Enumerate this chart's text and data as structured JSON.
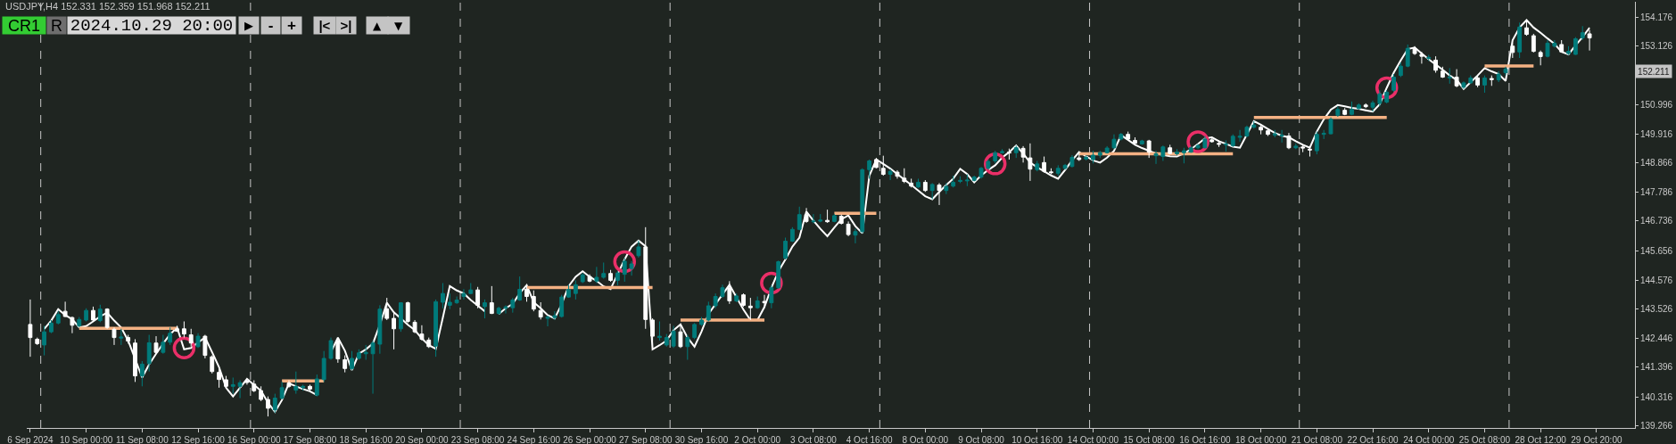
{
  "chart_data": {
    "type": "candlestick",
    "title": "USDJPY,H4 152.331 152.359 151.968 152.211",
    "annotations": [
      "CR1",
      "R",
      "2024.10.29 20:00",
      "▶",
      "-",
      "+",
      "|<",
      ">|",
      "▲",
      "▼",
      "152.211"
    ],
    "categories": [
      "6 Sep 2024",
      null,
      null,
      null,
      null,
      null,
      null,
      null,
      "10 Sep 00:00",
      null,
      null,
      null,
      null,
      null,
      null,
      null,
      "11 Sep 08:00",
      null,
      null,
      null,
      null,
      null,
      null,
      null,
      "12 Sep 16:00",
      null,
      null,
      null,
      null,
      null,
      null,
      null,
      "16 Sep 00:00",
      null,
      null,
      null,
      null,
      null,
      null,
      null,
      "17 Sep 08:00",
      null,
      null,
      null,
      null,
      null,
      null,
      null,
      "18 Sep 16:00",
      null,
      null,
      null,
      null,
      null,
      null,
      null,
      "20 Sep 00:00",
      null,
      null,
      null,
      null,
      null,
      null,
      null,
      "23 Sep 08:00",
      null,
      null,
      null,
      null,
      null,
      null,
      null,
      "24 Sep 16:00",
      null,
      null,
      null,
      null,
      null,
      null,
      null,
      "26 Sep 00:00",
      null,
      null,
      null,
      null,
      null,
      null,
      null,
      "27 Sep 08:00",
      null,
      null,
      null,
      null,
      null,
      null,
      null,
      "30 Sep 16:00",
      null,
      null,
      null,
      null,
      null,
      null,
      null,
      "2 Oct 00:00",
      null,
      null,
      null,
      null,
      null,
      null,
      null,
      "3 Oct 08:00",
      null,
      null,
      null,
      null,
      null,
      null,
      null,
      "4 Oct 16:00",
      null,
      null,
      null,
      null,
      null,
      null,
      null,
      "8 Oct 00:00",
      null,
      null,
      null,
      null,
      null,
      null,
      null,
      "9 Oct 08:00",
      null,
      null,
      null,
      null,
      null,
      null,
      null,
      "10 Oct 16:00",
      null,
      null,
      null,
      null,
      null,
      null,
      null,
      "14 Oct 00:00",
      null,
      null,
      null,
      null,
      null,
      null,
      null,
      "15 Oct 08:00",
      null,
      null,
      null,
      null,
      null,
      null,
      null,
      "16 Oct 16:00",
      null,
      null,
      null,
      null,
      null,
      null,
      null,
      "18 Oct 00:00",
      null,
      null,
      null,
      null,
      null,
      null,
      null,
      "21 Oct 08:00",
      null,
      null,
      null,
      null,
      null,
      null,
      null,
      "22 Oct 16:00",
      null,
      null,
      null,
      null,
      null,
      null,
      null,
      "24 Oct 00:00",
      null,
      null,
      null,
      null,
      null,
      null,
      null,
      "25 Oct 08:00",
      null,
      null,
      null,
      null,
      null,
      null,
      null,
      "28 Oct 12:00",
      null,
      null,
      null,
      null,
      null,
      null,
      null,
      "29 Oct 20:00"
    ],
    "ohlc": [
      [
        142.96,
        143.87,
        141.78,
        142.48
      ],
      [
        142.42,
        142.48,
        142.21,
        142.26
      ],
      [
        142.21,
        142.91,
        141.83,
        142.69
      ],
      [
        142.69,
        143.12,
        142.64,
        143.01
      ],
      [
        143.01,
        143.44,
        142.96,
        143.32
      ],
      [
        143.44,
        143.79,
        143.23,
        143.25
      ],
      [
        143.21,
        143.25,
        142.64,
        142.93
      ],
      [
        142.91,
        143.23,
        142.85,
        143.14
      ],
      [
        143.12,
        143.55,
        143.07,
        143.47
      ],
      [
        143.47,
        143.61,
        143.07,
        143.12
      ],
      [
        143.1,
        143.68,
        143.04,
        143.52
      ],
      [
        143.52,
        143.55,
        142.8,
        142.85
      ],
      [
        142.78,
        142.85,
        142.21,
        142.48
      ],
      [
        142.46,
        142.8,
        142.21,
        142.5
      ],
      [
        142.48,
        142.58,
        142.26,
        142.35
      ],
      [
        142.28,
        142.42,
        140.86,
        141.08
      ],
      [
        141.08,
        141.62,
        140.7,
        141.51
      ],
      [
        141.53,
        142.58,
        141.24,
        142.29
      ],
      [
        142.28,
        142.53,
        141.89,
        141.94
      ],
      [
        141.94,
        142.58,
        141.89,
        142.31
      ],
      [
        142.31,
        142.85,
        142.21,
        142.64
      ],
      [
        142.8,
        142.91,
        142.69,
        142.71
      ],
      [
        142.8,
        143.07,
        142.48,
        142.61
      ],
      [
        142.58,
        142.8,
        142.15,
        142.28
      ],
      [
        142.15,
        142.64,
        142.1,
        142.53
      ],
      [
        142.53,
        142.58,
        141.72,
        141.83
      ],
      [
        141.78,
        141.83,
        141.17,
        141.24
      ],
      [
        141.21,
        141.4,
        140.65,
        140.95
      ],
      [
        140.94,
        141.08,
        140.65,
        140.7
      ],
      [
        140.7,
        141.02,
        140.43,
        140.76
      ],
      [
        140.7,
        140.92,
        140.27,
        140.83
      ],
      [
        140.89,
        140.97,
        140.76,
        140.84
      ],
      [
        140.78,
        140.92,
        140.49,
        140.54
      ],
      [
        140.54,
        140.7,
        140.16,
        140.22
      ],
      [
        140.22,
        140.33,
        139.6,
        139.9
      ],
      [
        139.84,
        140.43,
        139.73,
        140.27
      ],
      [
        140.27,
        140.86,
        140.22,
        140.65
      ],
      [
        140.82,
        140.92,
        140.65,
        140.7
      ],
      [
        140.56,
        141.24,
        140.43,
        140.7
      ],
      [
        140.65,
        140.76,
        140.54,
        140.7
      ],
      [
        140.7,
        140.76,
        140.54,
        140.6
      ],
      [
        140.38,
        141.13,
        140.33,
        140.97
      ],
      [
        140.95,
        141.99,
        140.86,
        141.72
      ],
      [
        141.72,
        142.48,
        141.67,
        142.37
      ],
      [
        142.37,
        142.48,
        141.56,
        141.7
      ],
      [
        141.67,
        141.83,
        141.21,
        141.35
      ],
      [
        141.35,
        141.99,
        141.29,
        141.72
      ],
      [
        141.72,
        142.05,
        141.67,
        141.92
      ],
      [
        141.89,
        142.21,
        141.67,
        141.94
      ],
      [
        141.89,
        142.37,
        140.43,
        142.28
      ],
      [
        142.24,
        143.66,
        141.89,
        143.52
      ],
      [
        143.53,
        143.93,
        143.12,
        143.18
      ],
      [
        143.18,
        143.39,
        142.05,
        142.8
      ],
      [
        142.8,
        143.77,
        142.69,
        143.75
      ],
      [
        143.75,
        143.79,
        143.01,
        143.07
      ],
      [
        143.04,
        143.12,
        142.64,
        142.69
      ],
      [
        142.61,
        142.93,
        142.37,
        142.42
      ],
      [
        142.39,
        142.48,
        142.1,
        142.15
      ],
      [
        142.17,
        143.87,
        141.78,
        143.79
      ],
      [
        143.77,
        144.47,
        143.55,
        144.09
      ],
      [
        143.66,
        144.09,
        143.52,
        143.77
      ],
      [
        143.75,
        143.98,
        143.71,
        143.85
      ],
      [
        143.98,
        144.25,
        143.87,
        144.09
      ],
      [
        144.09,
        144.47,
        144.07,
        144.22
      ],
      [
        144.22,
        144.33,
        143.55,
        143.66
      ],
      [
        143.61,
        143.87,
        143.18,
        143.75
      ],
      [
        143.75,
        144.36,
        143.34,
        143.36
      ],
      [
        143.36,
        143.61,
        143.32,
        143.55
      ],
      [
        143.55,
        143.66,
        143.36,
        143.6
      ],
      [
        143.57,
        143.93,
        143.39,
        143.85
      ],
      [
        143.85,
        144.71,
        143.82,
        144.24
      ],
      [
        144.25,
        144.36,
        143.79,
        143.98
      ],
      [
        143.98,
        144.2,
        143.44,
        143.52
      ],
      [
        143.47,
        143.77,
        143.14,
        143.23
      ],
      [
        143.18,
        143.28,
        142.89,
        143.23
      ],
      [
        143.21,
        143.44,
        143.12,
        143.28
      ],
      [
        143.25,
        144.04,
        143.21,
        143.96
      ],
      [
        143.96,
        144.41,
        143.93,
        144.24
      ],
      [
        144.09,
        144.57,
        143.87,
        144.41
      ],
      [
        144.52,
        144.84,
        144.47,
        144.77
      ],
      [
        144.71,
        144.79,
        144.5,
        144.54
      ],
      [
        144.54,
        145.06,
        144.47,
        144.68
      ],
      [
        144.68,
        145.22,
        144.63,
        144.82
      ],
      [
        144.82,
        144.95,
        144.52,
        144.57
      ],
      [
        144.57,
        144.9,
        144.39,
        144.84
      ],
      [
        144.79,
        145.38,
        144.52,
        145.27
      ],
      [
        145.0,
        145.27,
        144.74,
        145.17
      ],
      [
        145.47,
        146.02,
        145.4,
        145.79
      ],
      [
        145.79,
        146.51,
        142.8,
        143.14
      ],
      [
        143.12,
        143.18,
        142.1,
        142.53
      ],
      [
        142.48,
        143.07,
        142.37,
        142.53
      ],
      [
        142.21,
        142.61,
        142.15,
        142.48
      ],
      [
        142.17,
        142.91,
        142.1,
        142.71
      ],
      [
        142.69,
        142.91,
        142.1,
        142.15
      ],
      [
        142.15,
        142.58,
        141.67,
        142.48
      ],
      [
        142.48,
        143.01,
        142.42,
        142.96
      ],
      [
        142.96,
        143.23,
        142.91,
        143.12
      ],
      [
        143.12,
        143.79,
        143.07,
        143.64
      ],
      [
        143.64,
        144.09,
        143.55,
        143.98
      ],
      [
        143.98,
        144.41,
        143.93,
        144.3
      ],
      [
        144.3,
        144.54,
        143.71,
        143.82
      ],
      [
        143.82,
        144.09,
        143.77,
        144.0
      ],
      [
        144.04,
        144.09,
        143.61,
        143.66
      ],
      [
        143.63,
        143.93,
        143.12,
        143.57
      ],
      [
        143.57,
        143.98,
        143.53,
        143.82
      ],
      [
        143.8,
        144.04,
        143.55,
        143.75
      ],
      [
        143.75,
        144.39,
        143.55,
        144.3
      ],
      [
        144.3,
        145.29,
        144.25,
        145.25
      ],
      [
        145.38,
        146.13,
        145.33,
        146.0
      ],
      [
        146.0,
        146.51,
        145.97,
        146.43
      ],
      [
        146.43,
        147.26,
        146.4,
        146.97
      ],
      [
        146.97,
        147.21,
        146.67,
        146.72
      ],
      [
        146.71,
        146.99,
        146.65,
        146.73
      ],
      [
        146.73,
        146.99,
        146.69,
        146.77
      ],
      [
        146.76,
        147.15,
        146.67,
        146.71
      ],
      [
        146.72,
        146.99,
        146.69,
        146.93
      ],
      [
        146.91,
        146.97,
        146.61,
        146.65
      ],
      [
        146.62,
        146.72,
        146.18,
        146.24
      ],
      [
        146.22,
        146.46,
        145.92,
        146.35
      ],
      [
        146.35,
        148.66,
        146.29,
        148.61
      ],
      [
        148.61,
        148.98,
        148.28,
        148.93
      ],
      [
        148.98,
        149.04,
        148.66,
        148.69
      ],
      [
        148.66,
        149.12,
        148.39,
        148.44
      ],
      [
        148.44,
        148.63,
        148.23,
        148.55
      ],
      [
        148.52,
        148.59,
        148.28,
        148.37
      ],
      [
        148.3,
        148.66,
        148.12,
        148.18
      ],
      [
        148.12,
        148.28,
        147.96,
        148.01
      ],
      [
        147.98,
        148.28,
        147.94,
        148.15
      ],
      [
        148.15,
        148.23,
        147.8,
        147.85
      ],
      [
        147.85,
        148.12,
        147.53,
        148.07
      ],
      [
        148.05,
        148.12,
        147.32,
        147.85
      ],
      [
        147.85,
        148.12,
        147.72,
        148.0
      ],
      [
        148.01,
        148.39,
        147.96,
        148.15
      ],
      [
        148.18,
        148.37,
        148.12,
        148.22
      ],
      [
        148.2,
        148.44,
        148.01,
        148.23
      ],
      [
        148.22,
        148.39,
        148.18,
        148.34
      ],
      [
        148.34,
        148.71,
        148.28,
        148.66
      ],
      [
        148.66,
        148.98,
        148.61,
        148.91
      ],
      [
        148.93,
        149.3,
        148.84,
        149.23
      ],
      [
        149.23,
        149.36,
        149.2,
        149.27
      ],
      [
        149.25,
        149.38,
        148.98,
        149.22
      ],
      [
        149.23,
        149.49,
        149.04,
        149.41
      ],
      [
        149.39,
        149.47,
        148.87,
        149.07
      ],
      [
        149.04,
        149.57,
        148.2,
        148.63
      ],
      [
        148.61,
        148.93,
        148.55,
        148.82
      ],
      [
        148.87,
        149.09,
        148.5,
        148.55
      ],
      [
        148.53,
        148.66,
        148.44,
        148.5
      ],
      [
        148.48,
        148.77,
        148.39,
        148.66
      ],
      [
        148.66,
        148.82,
        148.61,
        148.77
      ],
      [
        148.73,
        149.14,
        148.69,
        149.06
      ],
      [
        149.04,
        149.25,
        148.93,
        148.98
      ],
      [
        149.0,
        149.14,
        148.95,
        149.06
      ],
      [
        148.98,
        149.3,
        148.84,
        149.14
      ],
      [
        149.14,
        149.3,
        149.04,
        149.23
      ],
      [
        149.23,
        149.47,
        149.2,
        149.4
      ],
      [
        149.41,
        149.9,
        149.36,
        149.72
      ],
      [
        149.73,
        149.95,
        149.68,
        149.9
      ],
      [
        149.9,
        150.0,
        149.68,
        149.73
      ],
      [
        149.68,
        149.79,
        149.52,
        149.57
      ],
      [
        149.55,
        149.7,
        149.52,
        149.66
      ],
      [
        149.66,
        149.7,
        149.04,
        149.25
      ],
      [
        149.12,
        149.3,
        148.82,
        149.19
      ],
      [
        149.09,
        149.49,
        148.93,
        149.44
      ],
      [
        149.41,
        149.52,
        149.17,
        149.2
      ],
      [
        149.19,
        149.36,
        149.14,
        149.25
      ],
      [
        149.23,
        149.41,
        148.84,
        149.3
      ],
      [
        149.25,
        149.47,
        149.23,
        149.41
      ],
      [
        149.41,
        149.55,
        149.36,
        149.49
      ],
      [
        149.41,
        149.84,
        149.38,
        149.73
      ],
      [
        149.7,
        149.77,
        149.6,
        149.63
      ],
      [
        149.57,
        149.68,
        149.44,
        149.54
      ],
      [
        149.52,
        149.68,
        149.27,
        149.55
      ],
      [
        149.49,
        149.9,
        149.44,
        149.83
      ],
      [
        149.79,
        150.06,
        149.63,
        149.83
      ],
      [
        149.84,
        150.22,
        149.79,
        150.16
      ],
      [
        150.16,
        150.38,
        150.11,
        150.24
      ],
      [
        150.16,
        150.24,
        149.9,
        150.06
      ],
      [
        150.03,
        150.11,
        149.84,
        149.9
      ],
      [
        149.87,
        150.06,
        149.79,
        149.92
      ],
      [
        149.84,
        150.06,
        149.6,
        149.87
      ],
      [
        149.84,
        149.95,
        149.36,
        149.41
      ],
      [
        149.41,
        149.57,
        149.36,
        149.47
      ],
      [
        149.44,
        149.52,
        149.25,
        149.4
      ],
      [
        149.36,
        149.47,
        149.09,
        149.33
      ],
      [
        149.3,
        150.0,
        149.17,
        149.9
      ],
      [
        149.9,
        150.06,
        149.73,
        149.94
      ],
      [
        149.92,
        150.52,
        149.9,
        150.45
      ],
      [
        150.6,
        150.92,
        150.54,
        150.81
      ],
      [
        150.78,
        150.86,
        150.6,
        150.63
      ],
      [
        150.63,
        151.1,
        150.6,
        150.81
      ],
      [
        150.84,
        151.03,
        150.81,
        150.97
      ],
      [
        150.97,
        151.03,
        150.86,
        150.91
      ],
      [
        150.89,
        151.13,
        150.73,
        151.05
      ],
      [
        151.03,
        151.51,
        150.92,
        151.38
      ],
      [
        151.08,
        151.51,
        151.03,
        151.44
      ],
      [
        151.51,
        152.1,
        151.45,
        151.99
      ],
      [
        152.05,
        152.53,
        151.99,
        152.39
      ],
      [
        152.39,
        153.18,
        152.35,
        153.04
      ],
      [
        153.04,
        153.12,
        152.8,
        152.85
      ],
      [
        152.82,
        152.91,
        152.48,
        152.75
      ],
      [
        152.67,
        152.8,
        152.58,
        152.71
      ],
      [
        152.61,
        152.75,
        152.15,
        152.24
      ],
      [
        152.21,
        152.37,
        151.96,
        151.99
      ],
      [
        151.96,
        152.32,
        151.75,
        151.99
      ],
      [
        151.99,
        152.28,
        151.62,
        151.67
      ],
      [
        151.62,
        151.83,
        151.56,
        151.78
      ],
      [
        151.78,
        152.05,
        151.75,
        151.96
      ],
      [
        151.96,
        152.05,
        151.62,
        151.7
      ],
      [
        151.7,
        152.05,
        151.42,
        151.96
      ],
      [
        151.94,
        152.05,
        151.67,
        151.9
      ],
      [
        151.89,
        152.21,
        151.81,
        152.1
      ],
      [
        152.15,
        152.37,
        152.05,
        152.28
      ],
      [
        153.12,
        153.23,
        152.69,
        152.89
      ],
      [
        152.91,
        153.98,
        152.69,
        153.82
      ],
      [
        153.79,
        154.09,
        153.5,
        153.55
      ],
      [
        153.5,
        153.57,
        152.89,
        152.93
      ],
      [
        152.89,
        152.96,
        152.42,
        152.74
      ],
      [
        152.75,
        153.34,
        152.71,
        153.23
      ],
      [
        153.12,
        153.34,
        153.07,
        153.23
      ],
      [
        153.18,
        153.34,
        152.89,
        152.91
      ],
      [
        152.85,
        153.12,
        152.8,
        152.93
      ],
      [
        152.82,
        153.45,
        152.8,
        153.39
      ],
      [
        153.42,
        153.85,
        153.34,
        153.61
      ],
      [
        153.57,
        153.71,
        152.96,
        153.42
      ],
      null
    ],
    "colors": [
      "#ffffff",
      "#ffffff",
      "#007b7b",
      "#007b7b",
      "#007b7b",
      "#ffffff",
      "#ffffff",
      "#007b7b",
      "#007b7b",
      "#ffffff",
      "#007b7b",
      "#ffffff",
      "#ffffff",
      "#007b7b",
      "#ffffff",
      "#ffffff",
      "#007b7b",
      "#007b7b",
      "#ffffff",
      "#007b7b",
      "#007b7b",
      "#ffffff",
      "#ffffff",
      "#ffffff",
      "#007b7b",
      "#ffffff",
      "#ffffff",
      "#ffffff",
      "#ffffff",
      "#007b7b",
      "#007b7b",
      "#ffffff",
      "#ffffff",
      "#ffffff",
      "#ffffff",
      "#007b7b",
      "#007b7b",
      "#ffffff",
      "#007b7b",
      "#007b7b",
      "#ffffff",
      "#007b7b",
      "#007b7b",
      "#007b7b",
      "#ffffff",
      "#ffffff",
      "#007b7b",
      "#007b7b",
      "#007b7b",
      "#007b7b",
      "#007b7b",
      "#ffffff",
      "#ffffff",
      "#007b7b",
      "#ffffff",
      "#ffffff",
      "#ffffff",
      "#ffffff",
      "#007b7b",
      "#007b7b",
      "#007b7b",
      "#007b7b",
      "#007b7b",
      "#007b7b",
      "#ffffff",
      "#007b7b",
      "#ffffff",
      "#007b7b",
      "#007b7b",
      "#007b7b",
      "#007b7b",
      "#ffffff",
      "#ffffff",
      "#ffffff",
      "#007b7b",
      "#007b7b",
      "#007b7b",
      "#007b7b",
      "#007b7b",
      "#007b7b",
      "#ffffff",
      "#007b7b",
      "#007b7b",
      "#ffffff",
      "#007b7b",
      "#007b7b",
      "#007b7b",
      "#007b7b",
      "#ffffff",
      "#ffffff",
      "#007b7b",
      "#007b7b",
      "#007b7b",
      "#ffffff",
      "#007b7b",
      "#007b7b",
      "#007b7b",
      "#007b7b",
      "#007b7b",
      "#007b7b",
      "#ffffff",
      "#007b7b",
      "#ffffff",
      "#ffffff",
      "#007b7b",
      "#ffffff",
      "#007b7b",
      "#007b7b",
      "#007b7b",
      "#007b7b",
      "#007b7b",
      "#ffffff",
      "#007b7b",
      "#007b7b",
      "#ffffff",
      "#007b7b",
      "#ffffff",
      "#ffffff",
      "#007b7b",
      "#007b7b",
      "#007b7b",
      "#ffffff",
      "#ffffff",
      "#007b7b",
      "#ffffff",
      "#ffffff",
      "#ffffff",
      "#007b7b",
      "#ffffff",
      "#007b7b",
      "#ffffff",
      "#007b7b",
      "#007b7b",
      "#007b7b",
      "#007b7b",
      "#007b7b",
      "#007b7b",
      "#007b7b",
      "#007b7b",
      "#007b7b",
      "#ffffff",
      "#007b7b",
      "#ffffff",
      "#ffffff",
      "#007b7b",
      "#ffffff",
      "#ffffff",
      "#007b7b",
      "#007b7b",
      "#007b7b",
      "#ffffff",
      "#007b7b",
      "#007b7b",
      "#007b7b",
      "#007b7b",
      "#007b7b",
      "#007b7b",
      "#ffffff",
      "#ffffff",
      "#007b7b",
      "#ffffff",
      "#007b7b",
      "#007b7b",
      "#ffffff",
      "#007b7b",
      "#007b7b",
      "#007b7b",
      "#007b7b",
      "#007b7b",
      "#ffffff",
      "#ffffff",
      "#007b7b",
      "#007b7b",
      "#007b7b",
      "#007b7b",
      "#007b7b",
      "#ffffff",
      "#ffffff",
      "#007b7b",
      "#007b7b",
      "#ffffff",
      "#007b7b",
      "#ffffff",
      "#ffffff",
      "#007b7b",
      "#007b7b",
      "#007b7b",
      "#007b7b",
      "#ffffff",
      "#007b7b",
      "#007b7b",
      "#ffffff",
      "#007b7b",
      "#007b7b",
      "#007b7b",
      "#007b7b",
      "#007b7b",
      "#007b7b",
      "#ffffff",
      "#ffffff",
      "#007b7b",
      "#ffffff",
      "#ffffff",
      "#007b7b",
      "#ffffff",
      "#007b7b",
      "#007b7b",
      "#ffffff",
      "#007b7b",
      "#ffffff",
      "#007b7b",
      "#007b7b",
      "#ffffff",
      "#007b7b",
      "#ffffff",
      "#ffffff",
      "#ffffff",
      "#007b7b",
      "#007b7b",
      "#ffffff",
      "#007b7b",
      "#007b7b",
      "#007b7b",
      "#ffffff",
      null
    ],
    "series": [
      {
        "type": "line",
        "color": "#ffffff",
        "values": [
          null,
          null,
          142.8,
          143.1,
          143.52,
          143.3,
          143.15,
          142.85,
          142.9,
          143.07,
          143.25,
          143.39,
          143.1,
          142.85,
          142.37,
          141.7,
          141.02,
          141.5,
          141.89,
          142.26,
          142.6,
          142.85,
          142.05,
          142.1,
          142.3,
          142.48,
          141.95,
          141.4,
          140.65,
          140.33,
          140.65,
          140.97,
          140.75,
          140.54,
          140.1,
          139.77,
          140.2,
          140.81,
          140.7,
          140.6,
          140.52,
          140.38,
          null,
          141.95,
          142.48,
          142.0,
          141.29,
          141.89,
          142.05,
          142.26,
          142.95,
          143.75,
          143.4,
          143.18,
          142.95,
          142.75,
          142.45,
          142.2,
          142.07,
          143.2,
          144.36,
          144.2,
          144.09,
          143.85,
          143.65,
          143.44,
          null,
          143.34,
          143.55,
          143.71,
          144.1,
          144.39,
          143.77,
          143.55,
          143.3,
          143.18,
          143.7,
          144.36,
          144.7,
          144.9,
          144.7,
          144.55,
          144.35,
          144.25,
          144.8,
          145.33,
          145.8,
          146.02,
          145.81,
          142.05,
          142.2,
          142.37,
          142.75,
          142.96,
          142.48,
          142.15,
          142.7,
          143.34,
          143.7,
          144.05,
          144.41,
          143.95,
          143.5,
          143.12,
          143.12,
          143.6,
          144.3,
          144.9,
          145.33,
          145.8,
          146.13,
          147.08,
          146.75,
          146.45,
          146.18,
          146.5,
          146.8,
          146.94,
          146.55,
          146.29,
          148.39,
          148.98,
          148.82,
          148.65,
          148.45,
          148.25,
          148.05,
          147.85,
          147.64,
          147.53,
          147.8,
          148.05,
          148.28,
          148.64,
          148.45,
          148.15,
          148.4,
          148.6,
          148.77,
          149.05,
          149.25,
          149.49,
          149.2,
          148.87,
          148.7,
          148.55,
          148.4,
          148.28,
          148.6,
          148.95,
          149.25,
          149.1,
          148.95,
          148.87,
          149.05,
          149.3,
          149.87,
          149.7,
          149.52,
          149.4,
          149.3,
          149.2,
          149.15,
          149.1,
          149.09,
          149.2,
          149.36,
          149.55,
          149.75,
          149.79,
          149.65,
          149.55,
          149.45,
          149.41,
          149.9,
          150.38,
          150.25,
          150.1,
          149.95,
          149.85,
          149.79,
          149.65,
          149.52,
          149.41,
          150.0,
          150.45,
          150.8,
          150.97,
          150.92,
          150.87,
          150.83,
          150.78,
          150.73,
          151.0,
          151.6,
          152.15,
          152.6,
          153.01,
          153.07,
          152.85,
          152.64,
          152.45,
          152.26,
          152.05,
          151.89,
          151.56,
          151.8,
          152.05,
          152.32,
          152.2,
          152.1,
          151.85,
          153.34,
          153.8,
          154.07,
          153.8,
          153.61,
          153.4,
          153.2,
          152.91,
          152.82,
          153.15,
          153.45,
          153.79,
          null
        ]
      },
      {
        "type": "line",
        "color": "#f4b183",
        "values": [
          null,
          null,
          null,
          null,
          null,
          null,
          null,
          142.82,
          142.82,
          142.82,
          142.82,
          142.82,
          142.82,
          142.82,
          142.82,
          142.82,
          142.82,
          142.82,
          142.82,
          142.82,
          142.82,
          142.82,
          null,
          null,
          null,
          null,
          null,
          null,
          null,
          null,
          null,
          null,
          null,
          null,
          null,
          null,
          140.9,
          140.9,
          140.9,
          140.9,
          140.9,
          140.9,
          140.9,
          null,
          null,
          null,
          null,
          null,
          null,
          null,
          null,
          null,
          null,
          null,
          null,
          null,
          null,
          null,
          null,
          null,
          null,
          null,
          null,
          null,
          null,
          null,
          null,
          null,
          null,
          null,
          null,
          144.31,
          144.31,
          144.31,
          144.31,
          144.31,
          144.31,
          144.31,
          144.31,
          144.31,
          144.31,
          144.31,
          144.31,
          144.31,
          144.31,
          144.31,
          144.31,
          144.31,
          144.31,
          144.31,
          null,
          null,
          null,
          143.12,
          143.12,
          143.12,
          143.12,
          143.12,
          143.12,
          143.12,
          143.12,
          143.12,
          143.12,
          143.12,
          143.12,
          143.12,
          null,
          null,
          null,
          null,
          null,
          null,
          null,
          null,
          null,
          147.02,
          147.02,
          147.02,
          147.02,
          147.02,
          147.02,
          147.02,
          null,
          null,
          null,
          null,
          null,
          null,
          null,
          null,
          null,
          null,
          null,
          null,
          null,
          null,
          null,
          null,
          null,
          null,
          null,
          null,
          null,
          null,
          null,
          null,
          null,
          null,
          null,
          null,
          149.19,
          149.19,
          149.19,
          149.19,
          149.19,
          149.19,
          149.19,
          149.19,
          149.19,
          149.19,
          149.19,
          149.19,
          149.19,
          149.19,
          149.19,
          149.19,
          149.19,
          149.19,
          149.19,
          149.19,
          149.19,
          149.19,
          149.19,
          null,
          null,
          150.52,
          150.52,
          150.52,
          150.52,
          150.52,
          150.52,
          150.52,
          150.52,
          150.52,
          150.52,
          150.52,
          150.52,
          150.52,
          150.52,
          150.52,
          150.52,
          150.52,
          150.52,
          150.52,
          150.52,
          null,
          null,
          null,
          null,
          null,
          null,
          null,
          null,
          null,
          null,
          null,
          null,
          null,
          152.4,
          152.4,
          152.4,
          152.4,
          152.4,
          152.4,
          152.4,
          152.4,
          null,
          null,
          null,
          null,
          null,
          null,
          null,
          null,
          null
        ]
      },
      {
        "type": "scatter",
        "color": "#ea2f68",
        "marker": "circle",
        "values": [
          null,
          null,
          null,
          null,
          null,
          null,
          null,
          null,
          null,
          null,
          null,
          null,
          null,
          null,
          null,
          null,
          null,
          null,
          null,
          null,
          null,
          null,
          142.1,
          null,
          null,
          null,
          null,
          null,
          null,
          null,
          null,
          null,
          null,
          null,
          null,
          null,
          null,
          null,
          null,
          null,
          null,
          null,
          null,
          null,
          null,
          null,
          null,
          null,
          null,
          null,
          null,
          null,
          null,
          null,
          null,
          null,
          null,
          null,
          null,
          null,
          null,
          null,
          null,
          null,
          null,
          null,
          null,
          null,
          null,
          null,
          null,
          null,
          null,
          null,
          null,
          null,
          null,
          null,
          null,
          null,
          null,
          null,
          null,
          null,
          null,
          145.25,
          null,
          null,
          null,
          null,
          null,
          null,
          null,
          null,
          null,
          null,
          null,
          null,
          null,
          null,
          null,
          null,
          null,
          null,
          null,
          null,
          144.47,
          null,
          null,
          null,
          null,
          null,
          null,
          null,
          null,
          null,
          null,
          null,
          null,
          null,
          null,
          null,
          null,
          null,
          null,
          null,
          null,
          null,
          null,
          null,
          null,
          null,
          null,
          null,
          null,
          null,
          null,
          null,
          148.82,
          null,
          null,
          null,
          null,
          null,
          null,
          null,
          null,
          null,
          null,
          null,
          null,
          null,
          null,
          null,
          null,
          null,
          null,
          null,
          null,
          null,
          null,
          null,
          null,
          null,
          null,
          null,
          null,
          149.63,
          null,
          null,
          null,
          null,
          null,
          null,
          null,
          null,
          null,
          null,
          null,
          null,
          null,
          null,
          null,
          null,
          null,
          null,
          null,
          null,
          null,
          null,
          null,
          null,
          null,
          null,
          151.6,
          null,
          null,
          null,
          null,
          null,
          null,
          null,
          null,
          null,
          null,
          null,
          null,
          null,
          null,
          null,
          null,
          null,
          null,
          null,
          null,
          null,
          null,
          null,
          null,
          null,
          null,
          null,
          null,
          null,
          null
        ]
      }
    ],
    "ylim": [
      139.18,
      154.74
    ],
    "yticks": [
      154.176,
      153.126,
      150.996,
      149.916,
      148.866,
      147.786,
      146.736,
      145.656,
      144.576,
      143.526,
      142.446,
      141.396,
      140.316,
      139.266
    ]
  }
}
